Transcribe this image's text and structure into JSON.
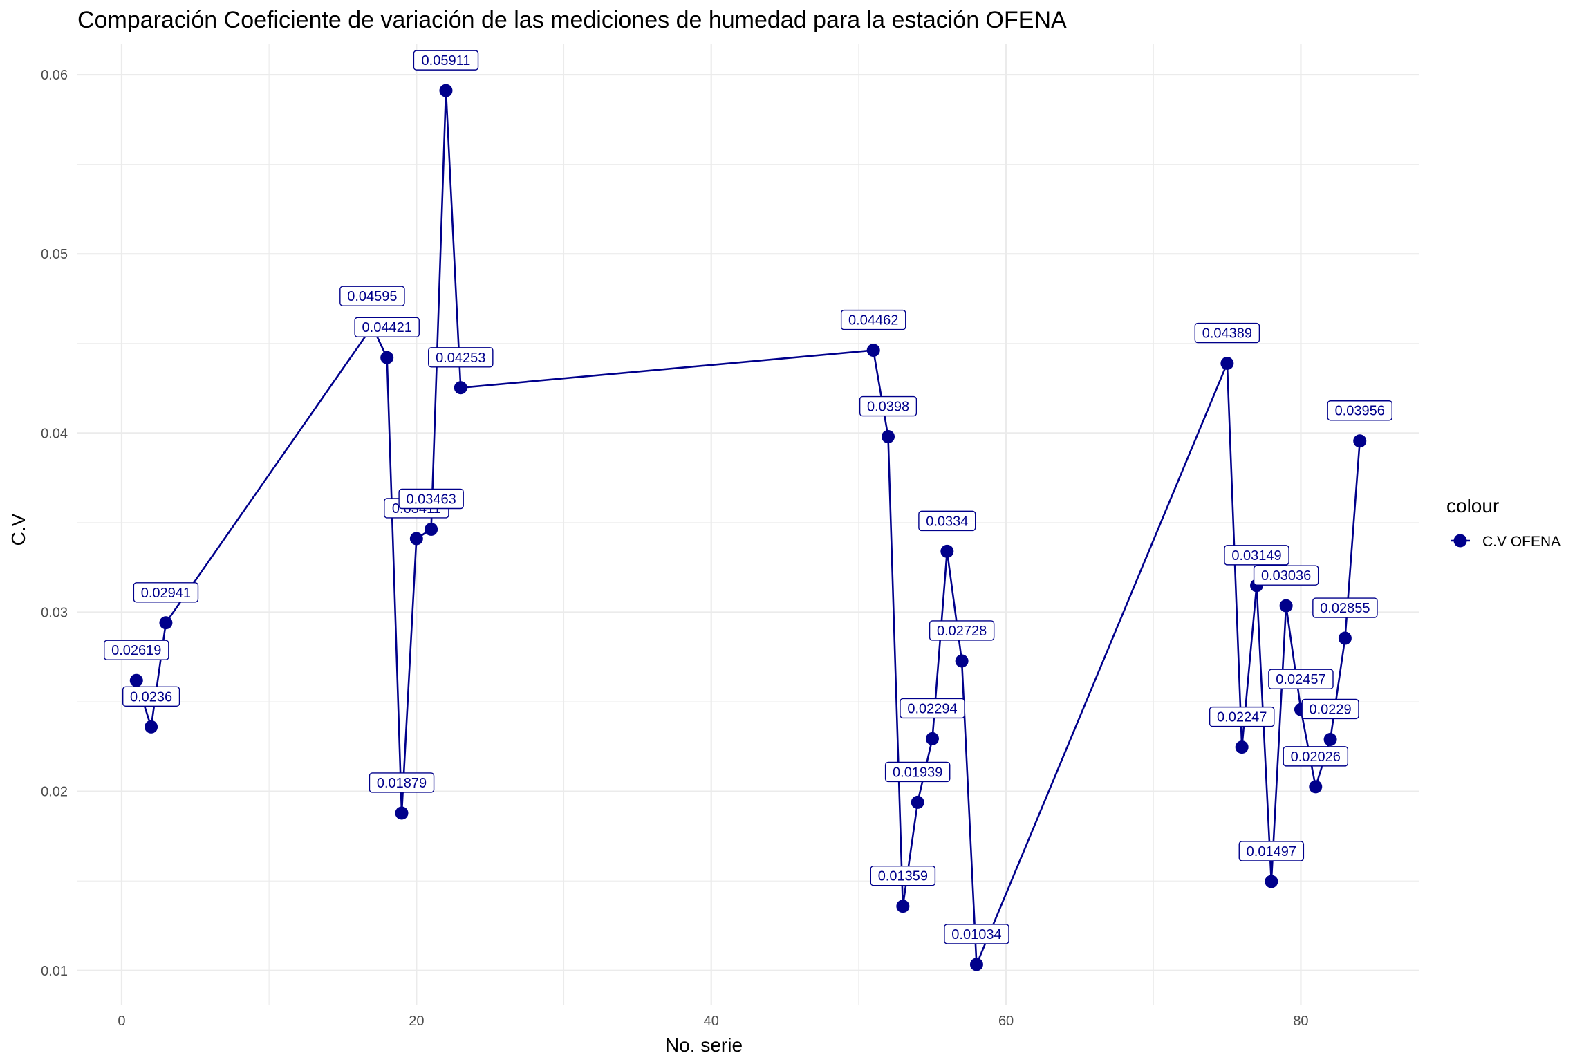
{
  "chart_data": {
    "type": "line",
    "title": "Comparación Coeficiente de variación de las mediciones de humedad para la estación OFENA",
    "xlabel": "No. serie",
    "ylabel": "C.V",
    "xlim": [
      -3,
      88
    ],
    "ylim": [
      0.0081,
      0.0617
    ],
    "x_ticks": [
      0,
      20,
      40,
      60,
      80
    ],
    "y_ticks": [
      0.01,
      0.02,
      0.03,
      0.04,
      0.05,
      0.06
    ],
    "x_tick_labels": [
      "0",
      "20",
      "40",
      "60",
      "80"
    ],
    "y_tick_labels": [
      "0.01",
      "0.02",
      "0.03",
      "0.04",
      "0.05",
      "0.06"
    ],
    "grid": true,
    "legend": {
      "title": "colour",
      "position": "right",
      "entries": [
        "C.V OFENA"
      ]
    },
    "series": [
      {
        "name": "C.V OFENA",
        "color": "#00008B",
        "x": [
          1,
          2,
          3,
          17,
          18,
          19,
          20,
          21,
          22,
          23,
          51,
          52,
          53,
          54,
          55,
          56,
          57,
          58,
          75,
          76,
          77,
          78,
          79,
          80,
          81,
          82,
          83,
          84
        ],
        "values": [
          0.02619,
          0.0236,
          0.02941,
          0.04595,
          0.04421,
          0.01879,
          0.03411,
          0.03463,
          0.05911,
          0.04253,
          0.04462,
          0.0398,
          0.01359,
          0.01939,
          0.02294,
          0.0334,
          0.02728,
          0.01034,
          0.04389,
          0.02247,
          0.03149,
          0.01497,
          0.03036,
          0.02457,
          0.02026,
          0.0229,
          0.02855,
          0.03956
        ],
        "labels": [
          "0.02619",
          "0.0236",
          "0.02941",
          "0.04595",
          "0.04421",
          "0.01879",
          "0.03411",
          "0.03463",
          "0.05911",
          "0.04253",
          "0.04462",
          "0.0398",
          "0.01359",
          "0.01939",
          "0.02294",
          "0.0334",
          "0.02728",
          "0.01034",
          "0.04389",
          "0.02247",
          "0.03149",
          "0.01497",
          "0.03036",
          "0.02457",
          "0.02026",
          "0.0229",
          "0.02855",
          "0.03956"
        ]
      }
    ]
  }
}
